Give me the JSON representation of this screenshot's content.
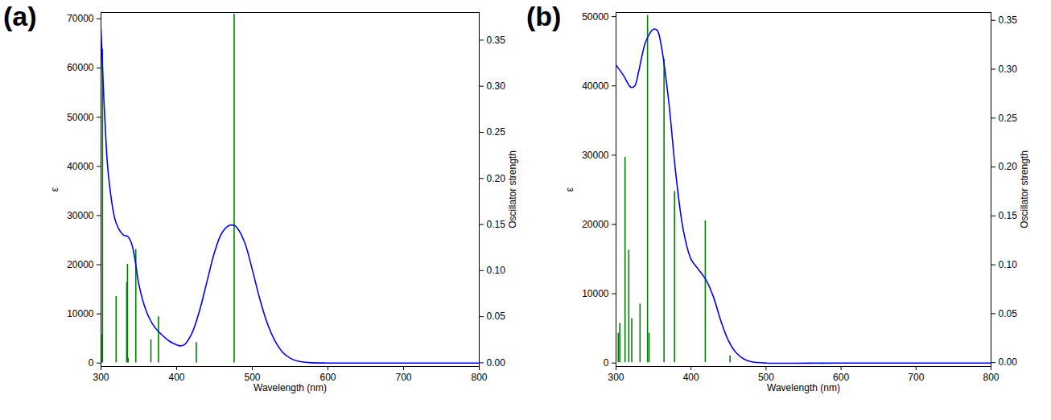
{
  "chart_data": [
    {
      "type": "line",
      "title": "(a)",
      "xlabel": "Wavelength (nm)",
      "ylabel": "ε",
      "y2label": "Oscillator strength",
      "xlim": [
        300,
        800
      ],
      "xticks": [
        300,
        400,
        500,
        600,
        700,
        800
      ],
      "ylim": [
        -700,
        71300
      ],
      "yticks": [
        0,
        10000,
        20000,
        30000,
        40000,
        50000,
        60000,
        70000
      ],
      "y2lim": [
        -0.004,
        0.38
      ],
      "y2ticks": [
        {
          "value": 0,
          "label": "0.00"
        },
        0.05,
        {
          "value": 0.1,
          "label": "0.10"
        },
        0.15,
        {
          "value": 0.2,
          "label": "0.20"
        },
        0.25,
        {
          "value": 0.3,
          "label": "0.30"
        },
        0.35
      ],
      "series": [
        {
          "type": "line",
          "color": "#0000ff",
          "x": [
            300,
            305,
            310,
            320,
            330,
            335,
            340,
            345,
            350,
            360,
            370,
            380,
            390,
            400,
            405,
            410,
            420,
            430,
            440,
            450,
            460,
            470,
            476,
            480,
            490,
            500,
            510,
            520,
            530,
            540,
            550,
            560,
            575,
            600,
            700,
            800
          ],
          "values": [
            68000,
            50000,
            38000,
            28500,
            26000,
            25800,
            24500,
            21000,
            16000,
            10500,
            7500,
            5800,
            4500,
            3700,
            3500,
            3700,
            6000,
            10500,
            16500,
            22500,
            26500,
            28000,
            28000,
            27500,
            24500,
            19000,
            13000,
            8000,
            4500,
            2200,
            1000,
            400,
            100,
            0,
            0,
            0
          ]
        },
        {
          "type": "bar",
          "axis": "y2",
          "color": "#008000",
          "x": [
            300.5,
            302,
            320,
            334,
            335,
            336,
            346,
            366,
            376,
            426,
            476
          ],
          "values": [
            0.03,
            0.34,
            0.072,
            0.087,
            0.107,
            0.005,
            0.123,
            0.025,
            0.05,
            0.022,
            0.378
          ]
        }
      ]
    },
    {
      "type": "line",
      "title": "(b)",
      "xlabel": "Wavelength (nm)",
      "ylabel": "ε",
      "y2label": "Oscillator strength",
      "xlim": [
        300,
        800
      ],
      "xticks": [
        300,
        400,
        500,
        600,
        700,
        800
      ],
      "ylim": [
        -500,
        50600
      ],
      "yticks": [
        0,
        10000,
        20000,
        30000,
        40000,
        50000
      ],
      "y2lim": [
        -0.004,
        0.358
      ],
      "y2ticks": [
        {
          "value": 0,
          "label": "0.00"
        },
        0.05,
        {
          "value": 0.1,
          "label": "0.10"
        },
        0.15,
        {
          "value": 0.2,
          "label": "0.20"
        },
        0.25,
        {
          "value": 0.3,
          "label": "0.30"
        },
        0.35
      ],
      "series": [
        {
          "type": "line",
          "color": "#0000ff",
          "x": [
            300,
            310,
            320,
            325,
            330,
            340,
            350,
            355,
            360,
            370,
            380,
            390,
            400,
            410,
            420,
            430,
            440,
            450,
            460,
            470,
            480,
            500,
            600,
            800
          ],
          "values": [
            43000,
            41500,
            39800,
            40000,
            42000,
            46500,
            48200,
            48000,
            46000,
            38000,
            27000,
            19000,
            15000,
            13500,
            12000,
            9500,
            6000,
            3200,
            1500,
            600,
            200,
            0,
            0,
            0
          ]
        },
        {
          "type": "bar",
          "axis": "y2",
          "color": "#008000",
          "x": [
            303,
            305,
            312,
            317,
            321,
            332,
            342,
            344,
            364,
            378,
            419,
            452
          ],
          "values": [
            0.03,
            0.04,
            0.21,
            0.115,
            0.045,
            0.06,
            0.355,
            0.03,
            0.31,
            0.175,
            0.145,
            0.007
          ]
        }
      ]
    }
  ]
}
